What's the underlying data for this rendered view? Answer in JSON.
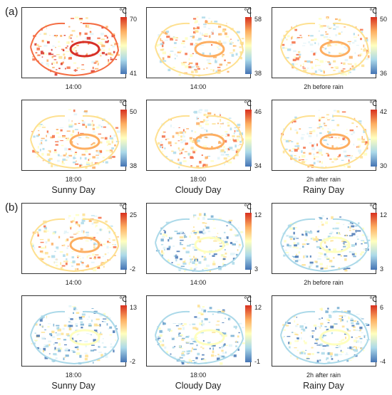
{
  "sections": [
    {
      "label": "(a)",
      "days": [
        "Sunny Day",
        "Cloudy  Day",
        "Rainy Day"
      ],
      "rows": [
        {
          "panels": [
            {
              "time": "14:00",
              "unit": "℃",
              "max": "70",
              "min": "41"
            },
            {
              "time": "14:00",
              "unit": "℃",
              "max": "58",
              "min": "38"
            },
            {
              "time": "2h before rain",
              "unit": "℃",
              "max": "50",
              "min": "36"
            }
          ]
        },
        {
          "panels": [
            {
              "time": "18:00",
              "unit": "℃",
              "max": "50",
              "min": "38"
            },
            {
              "time": "18:00",
              "unit": "℃",
              "max": "46",
              "min": "34"
            },
            {
              "time": "2h after rain",
              "unit": "℃",
              "max": "42",
              "min": "30"
            }
          ]
        }
      ]
    },
    {
      "label": "(b)",
      "days": [
        "Sunny Day",
        "Cloudy  Day",
        "Rainy Day"
      ],
      "rows": [
        {
          "panels": [
            {
              "time": "14:00",
              "unit": "℃",
              "max": "25",
              "min": "-2"
            },
            {
              "time": "14:00",
              "unit": "℃",
              "max": "12",
              "min": "3"
            },
            {
              "time": "2h before rain",
              "unit": "℃",
              "max": "12",
              "min": "3"
            }
          ]
        },
        {
          "panels": [
            {
              "time": "18:00",
              "unit": "℃",
              "max": "13",
              "min": "-2"
            },
            {
              "time": "18:00",
              "unit": "℃",
              "max": "12",
              "min": "-1"
            },
            {
              "time": "2h after rain",
              "unit": "℃",
              "max": "6",
              "min": "-4"
            }
          ]
        }
      ]
    }
  ],
  "colorbar": {
    "top_color": "#d7301f",
    "mid_color": "#ffffbf",
    "bottom_color": "#4575b4"
  }
}
